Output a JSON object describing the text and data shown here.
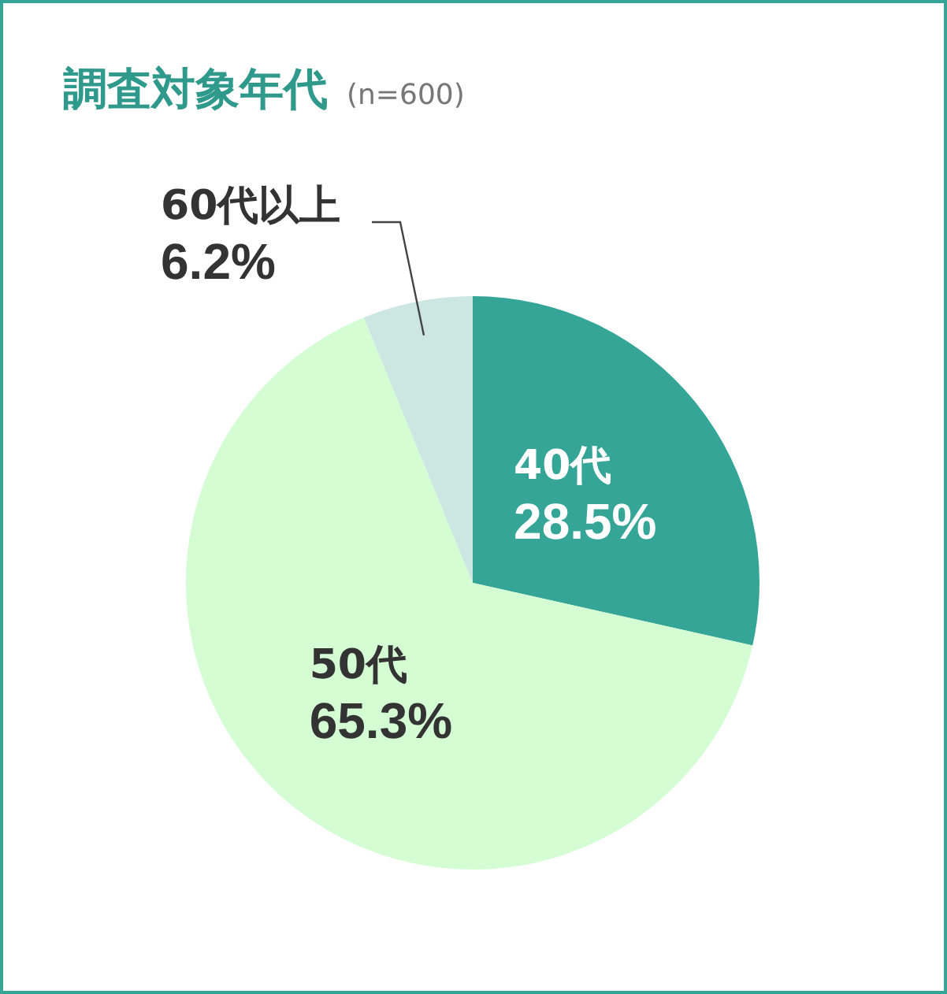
{
  "chart_data": {
    "type": "pie",
    "title": "調査対象年代",
    "subtitle": "(n=600)",
    "categories": [
      "40代",
      "50代",
      "60代以上"
    ],
    "values": [
      28.5,
      65.3,
      6.2
    ],
    "colors": [
      "#35a597",
      "#d4fdd4",
      "#cce6e2"
    ],
    "value_labels": [
      "28.5%",
      "65.3%",
      "6.2%"
    ],
    "legend": false
  }
}
